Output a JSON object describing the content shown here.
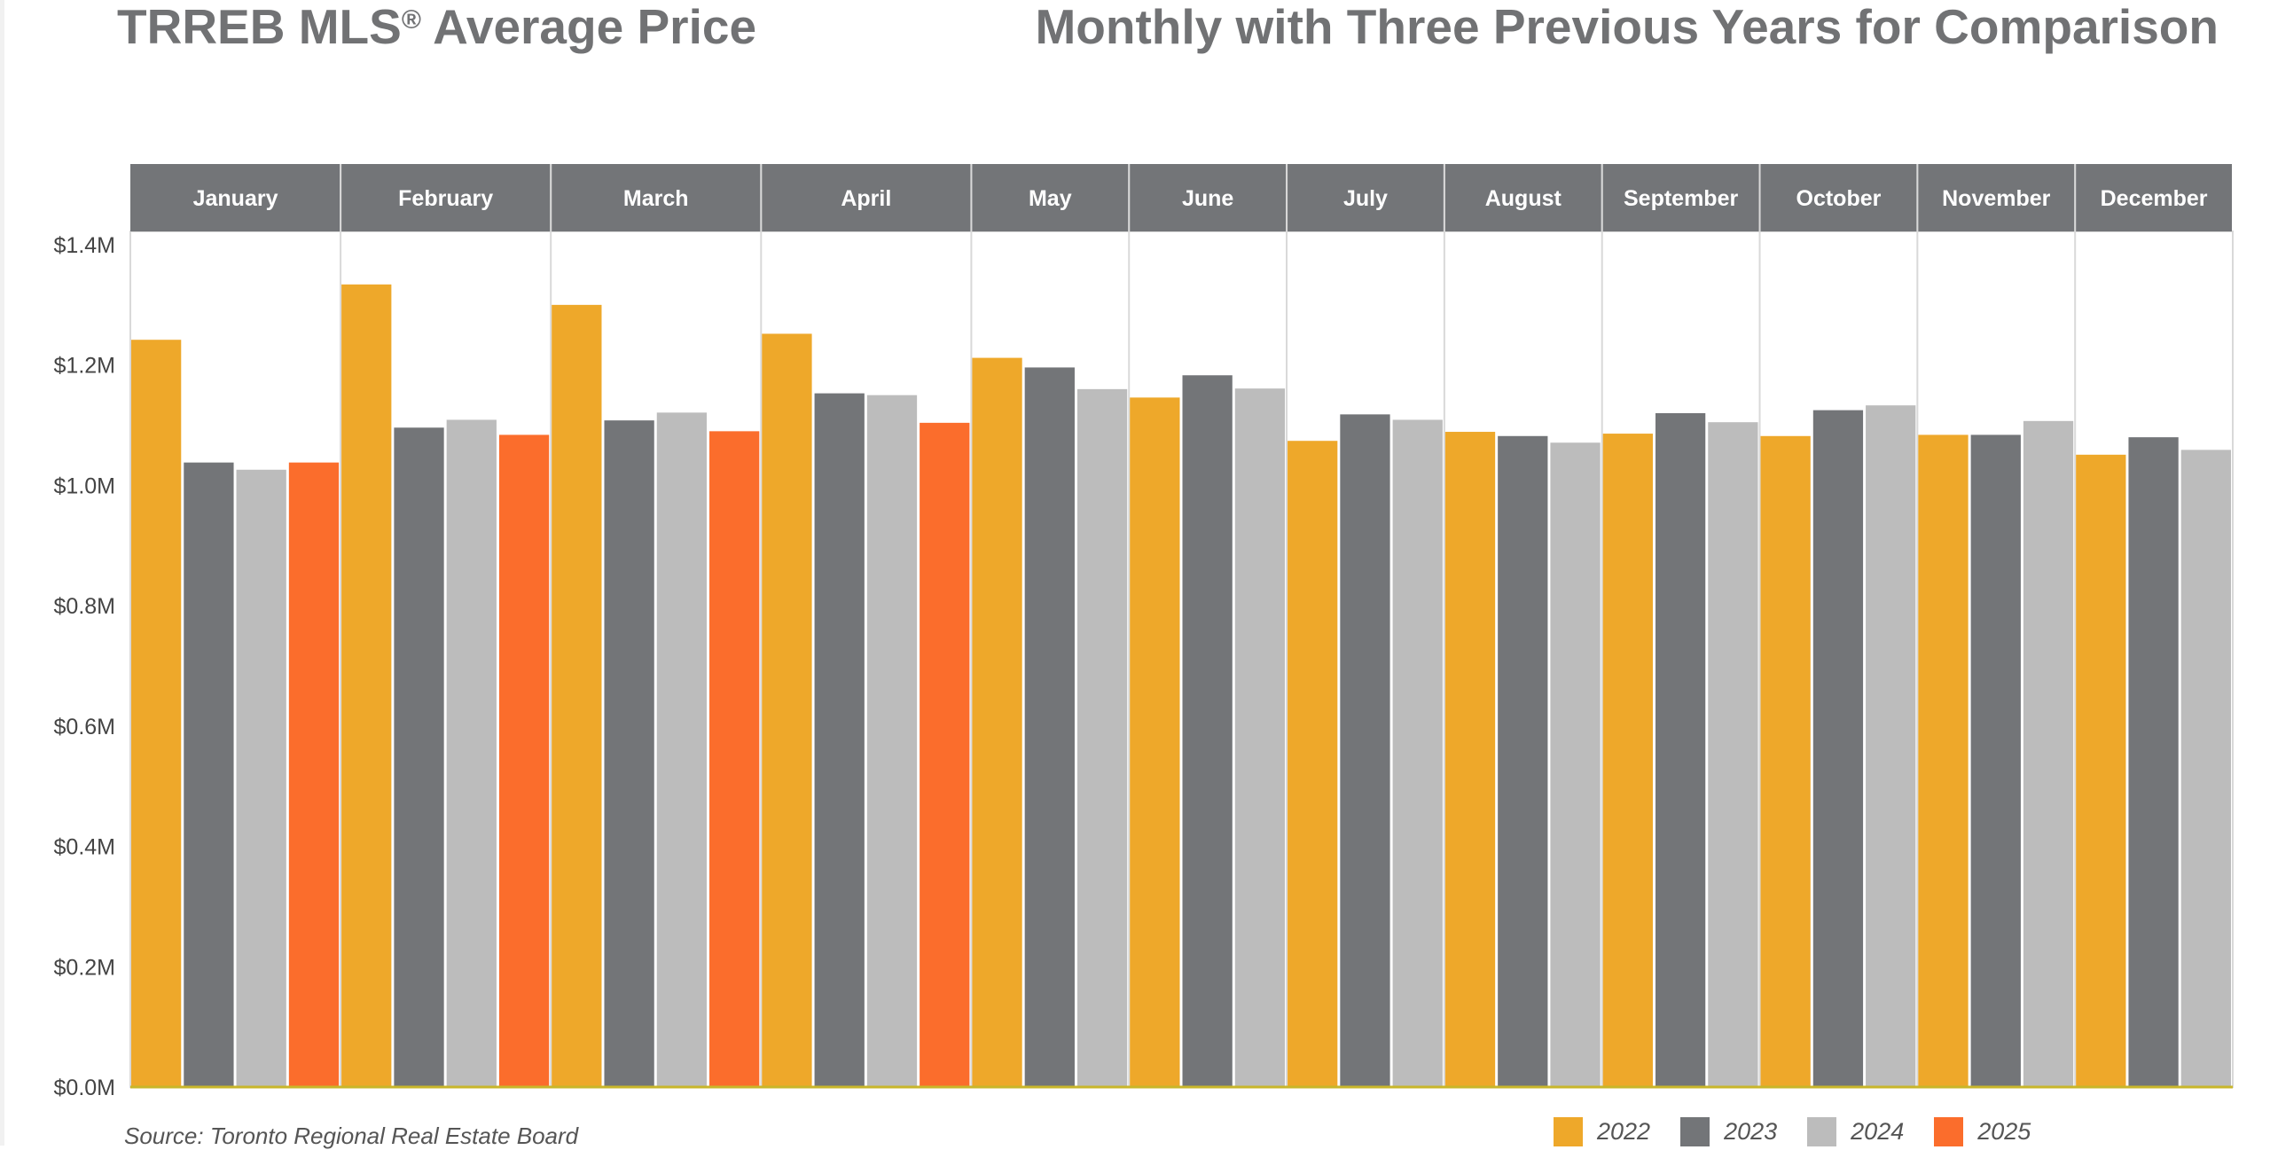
{
  "title_left": "TRREB MLS",
  "title_left_mark": "®",
  "title_left_rest": " Average Price",
  "title_right": "Monthly with Three Previous Years for Comparison",
  "source": "Source: Toronto Regional Real Estate Board",
  "colors": {
    "2022": "#eea82a",
    "2023": "#737578",
    "2024": "#bcbcbc",
    "2025": "#fb6d2c",
    "header_bg": "#737578",
    "header_text": "#ffffff",
    "axis_text": "#444444",
    "baseline": "#c8b62a"
  },
  "chart_data": {
    "type": "bar",
    "categories": [
      "January",
      "February",
      "March",
      "April",
      "May",
      "June",
      "July",
      "August",
      "September",
      "October",
      "November",
      "December"
    ],
    "series": [
      {
        "name": "2022",
        "values": [
          1.242,
          1.334,
          1.3,
          1.252,
          1.212,
          1.146,
          1.074,
          1.089,
          1.086,
          1.082,
          1.084,
          1.051
        ]
      },
      {
        "name": "2023",
        "values": [
          1.038,
          1.096,
          1.108,
          1.153,
          1.196,
          1.183,
          1.118,
          1.082,
          1.12,
          1.125,
          1.084,
          1.08
        ]
      },
      {
        "name": "2024",
        "values": [
          1.026,
          1.109,
          1.121,
          1.15,
          1.16,
          1.161,
          1.109,
          1.071,
          1.105,
          1.133,
          1.107,
          1.059
        ]
      },
      {
        "name": "2025",
        "values": [
          1.038,
          1.084,
          1.09,
          1.104,
          null,
          null,
          null,
          null,
          null,
          null,
          null,
          null
        ]
      }
    ],
    "ylim": [
      0,
      1.4
    ],
    "yticks": [
      "$0.0M",
      "$0.2M",
      "$0.4M",
      "$0.6M",
      "$0.8M",
      "$1.0M",
      "$1.2M",
      "$1.4M"
    ],
    "ytick_values": [
      0,
      0.2,
      0.4,
      0.6,
      0.8,
      1.0,
      1.2,
      1.4
    ],
    "legend": [
      "2022",
      "2023",
      "2024",
      "2025"
    ],
    "legend_position": "bottom-right",
    "grid": false
  }
}
